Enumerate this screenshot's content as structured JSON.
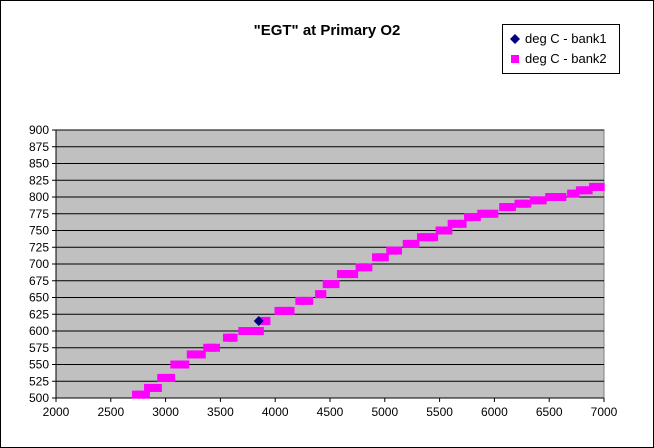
{
  "chart_data": {
    "type": "scatter",
    "title": "\"EGT\" at Primary O2",
    "xlabel": "",
    "ylabel": "",
    "xlim": [
      2000,
      7000
    ],
    "ylim": [
      500,
      900
    ],
    "x_ticks": [
      2000,
      2500,
      3000,
      3500,
      4000,
      4500,
      5000,
      5500,
      6000,
      6500,
      7000
    ],
    "y_ticks": [
      500,
      525,
      550,
      575,
      600,
      625,
      650,
      675,
      700,
      725,
      750,
      775,
      800,
      825,
      850,
      875,
      900
    ],
    "grid": "horizontal",
    "plot_background": "#c0c0c0",
    "legend_position": "top-right",
    "series": [
      {
        "name": "deg C - bank1",
        "marker": "diamond",
        "color": "#000080",
        "points": [
          [
            3850,
            615
          ]
        ]
      },
      {
        "name": "deg C - bank2",
        "marker": "square",
        "color": "#ff00ff",
        "points": [
          [
            2730,
            505
          ],
          [
            2770,
            505
          ],
          [
            2820,
            505
          ],
          [
            2840,
            515
          ],
          [
            2880,
            515
          ],
          [
            2930,
            515
          ],
          [
            2960,
            530
          ],
          [
            3000,
            530
          ],
          [
            3050,
            530
          ],
          [
            3080,
            550
          ],
          [
            3120,
            550
          ],
          [
            3180,
            550
          ],
          [
            3230,
            565
          ],
          [
            3280,
            565
          ],
          [
            3330,
            565
          ],
          [
            3380,
            575
          ],
          [
            3420,
            575
          ],
          [
            3460,
            575
          ],
          [
            3560,
            590
          ],
          [
            3600,
            590
          ],
          [
            3620,
            590
          ],
          [
            3700,
            600
          ],
          [
            3740,
            600
          ],
          [
            3780,
            600
          ],
          [
            3820,
            600
          ],
          [
            3860,
            600
          ],
          [
            3900,
            615
          ],
          [
            3920,
            615
          ],
          [
            4030,
            630
          ],
          [
            4070,
            630
          ],
          [
            4110,
            630
          ],
          [
            4140,
            630
          ],
          [
            4220,
            645
          ],
          [
            4260,
            645
          ],
          [
            4310,
            645
          ],
          [
            4400,
            655
          ],
          [
            4430,
            655
          ],
          [
            4470,
            670
          ],
          [
            4510,
            670
          ],
          [
            4550,
            670
          ],
          [
            4600,
            685
          ],
          [
            4640,
            685
          ],
          [
            4680,
            685
          ],
          [
            4720,
            685
          ],
          [
            4770,
            695
          ],
          [
            4810,
            695
          ],
          [
            4850,
            695
          ],
          [
            4920,
            710
          ],
          [
            4960,
            710
          ],
          [
            5000,
            710
          ],
          [
            5050,
            720
          ],
          [
            5080,
            720
          ],
          [
            5120,
            720
          ],
          [
            5200,
            730
          ],
          [
            5240,
            730
          ],
          [
            5280,
            730
          ],
          [
            5330,
            740
          ],
          [
            5370,
            740
          ],
          [
            5410,
            740
          ],
          [
            5450,
            740
          ],
          [
            5500,
            750
          ],
          [
            5540,
            750
          ],
          [
            5580,
            750
          ],
          [
            5610,
            760
          ],
          [
            5660,
            760
          ],
          [
            5710,
            760
          ],
          [
            5760,
            770
          ],
          [
            5800,
            770
          ],
          [
            5840,
            770
          ],
          [
            5880,
            775
          ],
          [
            5920,
            775
          ],
          [
            5960,
            775
          ],
          [
            6000,
            775
          ],
          [
            6080,
            785
          ],
          [
            6120,
            785
          ],
          [
            6160,
            785
          ],
          [
            6220,
            790
          ],
          [
            6260,
            790
          ],
          [
            6300,
            790
          ],
          [
            6360,
            795
          ],
          [
            6400,
            795
          ],
          [
            6440,
            795
          ],
          [
            6500,
            800
          ],
          [
            6540,
            800
          ],
          [
            6580,
            800
          ],
          [
            6620,
            800
          ],
          [
            6700,
            805
          ],
          [
            6740,
            805
          ],
          [
            6780,
            810
          ],
          [
            6820,
            810
          ],
          [
            6860,
            810
          ],
          [
            6900,
            815
          ],
          [
            6940,
            815
          ],
          [
            6970,
            815
          ]
        ]
      }
    ]
  }
}
